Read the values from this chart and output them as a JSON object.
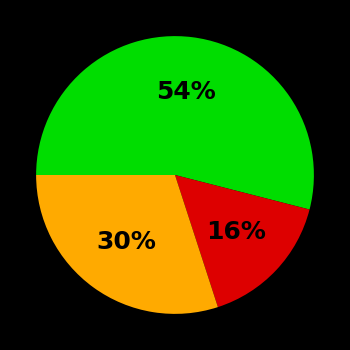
{
  "slices": [
    54,
    16,
    30
  ],
  "colors": [
    "#00dd00",
    "#dd0000",
    "#ffaa00"
  ],
  "labels": [
    "54%",
    "16%",
    "30%"
  ],
  "startangle": 180,
  "counterclock": false,
  "background_color": "#000000",
  "text_color": "#000000",
  "font_size": 18,
  "font_weight": "bold",
  "label_r": 0.6
}
